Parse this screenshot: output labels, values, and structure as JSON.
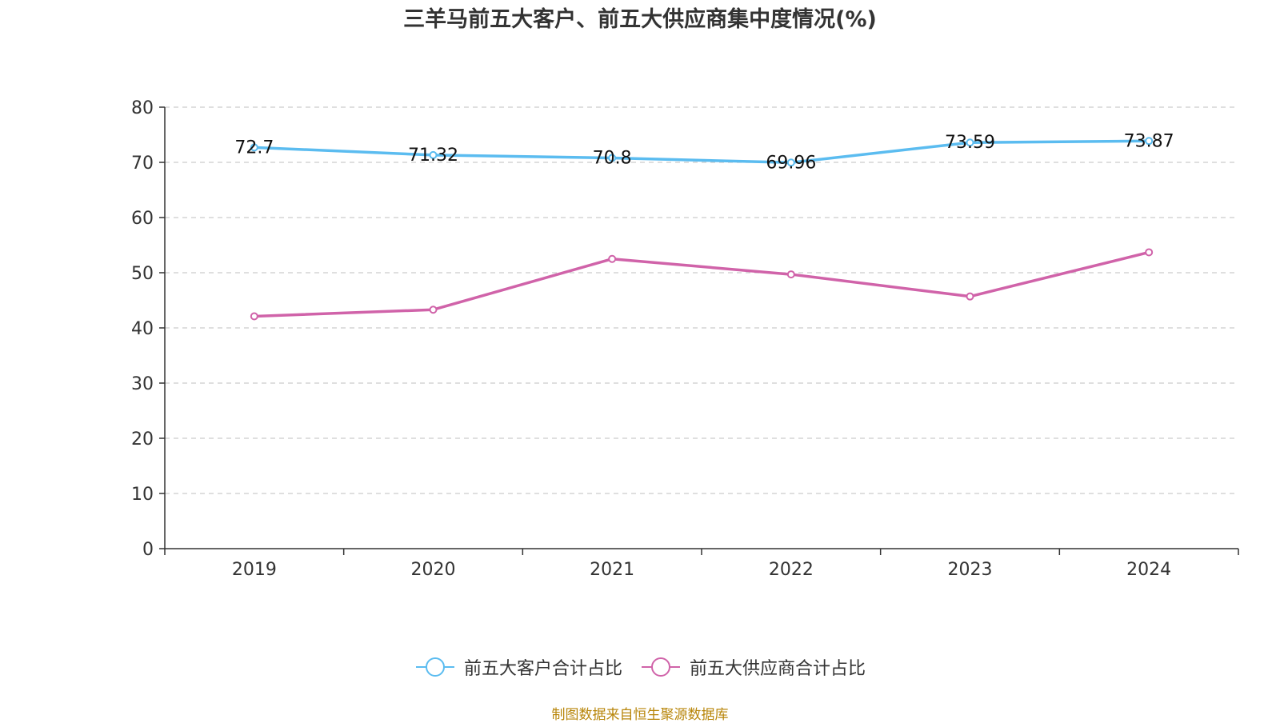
{
  "source": "制图数据来自恒生聚源数据库",
  "chart_data": {
    "type": "line",
    "title": "三羊马前五大客户、前五大供应商集中度情况(%)",
    "xlabel": "",
    "ylabel": "",
    "categories": [
      "2019",
      "2020",
      "2021",
      "2022",
      "2023",
      "2024"
    ],
    "ylim": [
      0,
      80
    ],
    "yticks": [
      0,
      10,
      20,
      30,
      40,
      50,
      60,
      70,
      80
    ],
    "grid": true,
    "legend_position": "bottom",
    "series": [
      {
        "name": "前五大客户合计占比",
        "color": "#5bbcf0",
        "values": [
          72.7,
          71.32,
          70.8,
          69.96,
          73.59,
          73.87
        ],
        "labels": [
          "72.7",
          "71.32",
          "70.8",
          "69.96",
          "73.59",
          "73.87"
        ],
        "show_labels": true
      },
      {
        "name": "前五大供应商合计占比",
        "color": "#d063a9",
        "values": [
          42.1,
          43.3,
          52.5,
          49.7,
          45.7,
          53.7
        ],
        "show_labels": false
      }
    ]
  }
}
